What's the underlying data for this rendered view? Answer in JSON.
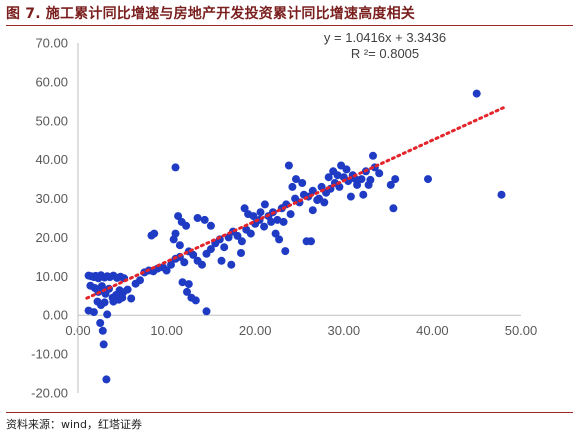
{
  "header": {
    "title": "图 7. 施工累计同比增速与房地产开发投资累计同比增速高度相关"
  },
  "footer": {
    "source": "资料来源：wind，红塔证券"
  },
  "colors": {
    "point": "#1f3bc4",
    "trend": "#e3242b",
    "axis": "#bfbfbf",
    "title": "#7a1e1e"
  },
  "chart_data": {
    "type": "scatter",
    "title": "",
    "xlabel": "",
    "ylabel": "",
    "xlim": [
      0,
      50
    ],
    "ylim": [
      -20,
      70
    ],
    "x_ticks": [
      "0.00",
      "10.00",
      "20.00",
      "30.00",
      "40.00",
      "50.00"
    ],
    "y_ticks": [
      "-20.00",
      "-10.00",
      "0.00",
      "10.00",
      "20.00",
      "30.00",
      "40.00",
      "50.00",
      "60.00",
      "70.00"
    ],
    "grid": false,
    "legend": "none",
    "trendline": {
      "slope": 1.0416,
      "intercept": 3.3436,
      "equation": "y = 1.0416x + 3.3436",
      "r_squared": "R ²= 0.8005"
    },
    "points": [
      [
        1.2,
        10.2
      ],
      [
        1.5,
        10.0
      ],
      [
        1.8,
        9.8
      ],
      [
        2.0,
        10.1
      ],
      [
        2.3,
        9.5
      ],
      [
        2.6,
        10.3
      ],
      [
        3.0,
        9.7
      ],
      [
        3.3,
        10.0
      ],
      [
        3.6,
        9.8
      ],
      [
        4.0,
        10.2
      ],
      [
        4.4,
        9.6
      ],
      [
        4.8,
        9.9
      ],
      [
        5.2,
        9.5
      ],
      [
        1.4,
        7.6
      ],
      [
        1.9,
        7.0
      ],
      [
        2.3,
        6.0
      ],
      [
        2.7,
        7.5
      ],
      [
        3.1,
        5.5
      ],
      [
        3.5,
        6.8
      ],
      [
        3.9,
        4.5
      ],
      [
        4.3,
        5.2
      ],
      [
        4.7,
        6.4
      ],
      [
        5.1,
        5.9
      ],
      [
        5.6,
        6.6
      ],
      [
        6.0,
        4.3
      ],
      [
        6.5,
        8.1
      ],
      [
        7.0,
        9.0
      ],
      [
        7.5,
        11.0
      ],
      [
        8.0,
        11.5
      ],
      [
        8.5,
        11.3
      ],
      [
        1.2,
        1.2
      ],
      [
        1.8,
        0.8
      ],
      [
        2.2,
        3.5
      ],
      [
        2.6,
        2.6
      ],
      [
        3.0,
        3.3
      ],
      [
        2.5,
        -2.0
      ],
      [
        2.8,
        -4.0
      ],
      [
        2.9,
        -7.5
      ],
      [
        3.2,
        -16.5
      ],
      [
        3.3,
        0.2
      ],
      [
        4.0,
        3.5
      ],
      [
        4.6,
        4.0
      ],
      [
        5.0,
        4.5
      ],
      [
        9.0,
        12.0
      ],
      [
        9.6,
        12.3
      ],
      [
        10.0,
        11.5
      ],
      [
        10.5,
        13.0
      ],
      [
        11.0,
        14.5
      ],
      [
        11.5,
        15.0
      ],
      [
        12.0,
        13.6
      ],
      [
        12.5,
        16.4
      ],
      [
        13.0,
        15.5
      ],
      [
        13.5,
        14.0
      ],
      [
        14.0,
        13.0
      ],
      [
        14.5,
        15.8
      ],
      [
        15.0,
        17.0
      ],
      [
        15.5,
        18.5
      ],
      [
        16.0,
        19.5
      ],
      [
        16.5,
        17.5
      ],
      [
        17.0,
        20.0
      ],
      [
        17.5,
        21.5
      ],
      [
        18.0,
        20.4
      ],
      [
        18.5,
        19.0
      ],
      [
        19.0,
        22.0
      ],
      [
        19.5,
        21.0
      ],
      [
        20.0,
        23.5
      ],
      [
        20.5,
        24.5
      ],
      [
        21.0,
        22.8
      ],
      [
        21.5,
        25.5
      ],
      [
        22.0,
        26.5
      ],
      [
        22.5,
        24.5
      ],
      [
        23.0,
        27.5
      ],
      [
        23.5,
        28.5
      ],
      [
        24.0,
        26.0
      ],
      [
        24.5,
        30.0
      ],
      [
        25.0,
        29.0
      ],
      [
        25.5,
        31.0
      ],
      [
        26.0,
        30.5
      ],
      [
        26.5,
        32.0
      ],
      [
        27.0,
        29.6
      ],
      [
        27.5,
        33.0
      ],
      [
        28.0,
        31.5
      ],
      [
        28.5,
        32.5
      ],
      [
        29.0,
        34.0
      ],
      [
        29.5,
        33.0
      ],
      [
        30.0,
        35.5
      ],
      [
        30.5,
        34.5
      ],
      [
        31.0,
        36.0
      ],
      [
        31.5,
        33.5
      ],
      [
        32.0,
        35.0
      ],
      [
        32.5,
        37.0
      ],
      [
        33.0,
        34.8
      ],
      [
        33.5,
        38.0
      ],
      [
        34.0,
        36.5
      ],
      [
        8.3,
        20.5
      ],
      [
        8.6,
        21.0
      ],
      [
        11.0,
        38.0
      ],
      [
        11.3,
        25.5
      ],
      [
        11.7,
        24.0
      ],
      [
        12.2,
        23.0
      ],
      [
        13.5,
        25.0
      ],
      [
        14.3,
        24.5
      ],
      [
        15.0,
        23.0
      ],
      [
        11.0,
        21.0
      ],
      [
        10.8,
        19.5
      ],
      [
        11.5,
        18.0
      ],
      [
        11.8,
        8.5
      ],
      [
        12.3,
        6.0
      ],
      [
        12.8,
        4.5
      ],
      [
        13.3,
        3.8
      ],
      [
        12.5,
        8.0
      ],
      [
        14.5,
        1.0
      ],
      [
        16.2,
        14.0
      ],
      [
        17.3,
        13.0
      ],
      [
        18.4,
        16.0
      ],
      [
        18.8,
        27.5
      ],
      [
        19.2,
        26.0
      ],
      [
        19.8,
        25.5
      ],
      [
        20.6,
        26.5
      ],
      [
        21.1,
        28.5
      ],
      [
        21.8,
        24.0
      ],
      [
        22.3,
        21.0
      ],
      [
        22.7,
        19.5
      ],
      [
        23.4,
        16.5
      ],
      [
        23.2,
        24.0
      ],
      [
        23.8,
        38.5
      ],
      [
        24.2,
        33.0
      ],
      [
        24.6,
        35.0
      ],
      [
        25.3,
        34.0
      ],
      [
        26.5,
        27.0
      ],
      [
        27.2,
        30.0
      ],
      [
        27.8,
        29.0
      ],
      [
        28.3,
        35.5
      ],
      [
        28.8,
        37.0
      ],
      [
        29.3,
        36.0
      ],
      [
        29.7,
        38.5
      ],
      [
        30.3,
        37.5
      ],
      [
        30.8,
        30.5
      ],
      [
        31.3,
        35.0
      ],
      [
        32.2,
        31.0
      ],
      [
        32.8,
        33.5
      ],
      [
        33.3,
        41.0
      ],
      [
        25.8,
        19.0
      ],
      [
        26.3,
        19.0
      ],
      [
        35.8,
        35.0
      ],
      [
        35.6,
        27.5
      ],
      [
        35.3,
        33.5
      ],
      [
        39.5,
        35.0
      ],
      [
        45.0,
        57.0
      ],
      [
        47.8,
        31.0
      ]
    ]
  }
}
